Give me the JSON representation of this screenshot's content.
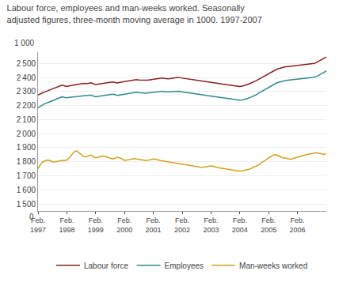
{
  "chart_data": {
    "type": "line",
    "title": "Labour force, employees and man-weeks worked. Seasonally\nadjusted figures, three-month moving average in 1000. 1997-2007",
    "ylabel": "1 000",
    "categories": [
      "Feb.\n1997",
      null,
      null,
      null,
      null,
      null,
      null,
      null,
      null,
      null,
      null,
      null,
      "Feb.\n1998",
      null,
      null,
      null,
      null,
      null,
      null,
      null,
      null,
      null,
      null,
      null,
      "Feb.\n1999",
      null,
      null,
      null,
      null,
      null,
      null,
      null,
      null,
      null,
      null,
      null,
      "Feb.\n2000",
      null,
      null,
      null,
      null,
      null,
      null,
      null,
      null,
      null,
      null,
      null,
      "Feb.\n2001",
      null,
      null,
      null,
      null,
      null,
      null,
      null,
      null,
      null,
      null,
      null,
      "Feb.\n2002",
      null,
      null,
      null,
      null,
      null,
      null,
      null,
      null,
      null,
      null,
      null,
      "Feb.\n2003",
      null,
      null,
      null,
      null,
      null,
      null,
      null,
      null,
      null,
      null,
      null,
      "Feb.\n2004",
      null,
      null,
      null,
      null,
      null,
      null,
      null,
      null,
      null,
      null,
      null,
      "Feb.\n2005",
      null,
      null,
      null,
      null,
      null,
      null,
      null,
      null,
      null,
      null,
      null,
      "Feb.\n2006",
      null,
      null,
      null,
      null,
      null,
      null,
      null,
      null,
      null,
      null,
      null,
      null
    ],
    "series": [
      {
        "name": "Labour force",
        "color": "#8B2020",
        "values": [
          2275,
          2285,
          2292,
          2298,
          2305,
          2310,
          2318,
          2325,
          2330,
          2338,
          2345,
          2340,
          2335,
          2340,
          2342,
          2345,
          2348,
          2352,
          2355,
          2358,
          2355,
          2358,
          2362,
          2355,
          2350,
          2352,
          2355,
          2358,
          2360,
          2362,
          2365,
          2368,
          2365,
          2360,
          2365,
          2368,
          2370,
          2372,
          2375,
          2378,
          2382,
          2385,
          2382,
          2380,
          2378,
          2380,
          2382,
          2385,
          2388,
          2390,
          2392,
          2395,
          2395,
          2392,
          2390,
          2392,
          2395,
          2398,
          2400,
          2398,
          2395,
          2392,
          2390,
          2388,
          2385,
          2382,
          2380,
          2378,
          2375,
          2372,
          2370,
          2368,
          2365,
          2362,
          2360,
          2358,
          2355,
          2352,
          2350,
          2348,
          2345,
          2342,
          2340,
          2338,
          2335,
          2338,
          2342,
          2348,
          2355,
          2362,
          2370,
          2378,
          2388,
          2398,
          2408,
          2418,
          2428,
          2438,
          2448,
          2455,
          2462,
          2468,
          2472,
          2476,
          2478,
          2480,
          2482,
          2483,
          2484,
          2485,
          2486,
          2488,
          2490,
          2492,
          2495,
          2500,
          2508,
          2518,
          2528,
          2538,
          2545
        ]
      },
      {
        "name": "Employees",
        "color": "#2E8B8B",
        "values": [
          2185,
          2195,
          2205,
          2215,
          2220,
          2228,
          2235,
          2242,
          2248,
          2255,
          2262,
          2258,
          2255,
          2258,
          2260,
          2262,
          2265,
          2268,
          2270,
          2272,
          2270,
          2272,
          2275,
          2268,
          2262,
          2265,
          2268,
          2270,
          2272,
          2275,
          2278,
          2280,
          2278,
          2272,
          2275,
          2278,
          2280,
          2282,
          2285,
          2288,
          2292,
          2295,
          2292,
          2290,
          2288,
          2288,
          2290,
          2292,
          2295,
          2298,
          2300,
          2302,
          2302,
          2298,
          2296,
          2298,
          2300,
          2302,
          2304,
          2302,
          2298,
          2295,
          2292,
          2290,
          2288,
          2285,
          2282,
          2280,
          2278,
          2275,
          2272,
          2270,
          2268,
          2265,
          2262,
          2260,
          2258,
          2255,
          2252,
          2250,
          2248,
          2245,
          2242,
          2240,
          2238,
          2240,
          2243,
          2248,
          2255,
          2262,
          2270,
          2278,
          2290,
          2300,
          2312,
          2322,
          2332,
          2342,
          2352,
          2358,
          2365,
          2370,
          2374,
          2378,
          2380,
          2382,
          2384,
          2385,
          2386,
          2387,
          2388,
          2390,
          2392,
          2395,
          2398,
          2402,
          2408,
          2418,
          2428,
          2438,
          2445
        ]
      },
      {
        "name": "Man-weeks worked",
        "color": "#D4A020",
        "values": [
          1750,
          1780,
          1800,
          1808,
          1812,
          1808,
          1800,
          1798,
          1802,
          1808,
          1810,
          1808,
          1812,
          1830,
          1850,
          1870,
          1878,
          1865,
          1848,
          1838,
          1835,
          1842,
          1848,
          1838,
          1828,
          1832,
          1838,
          1840,
          1838,
          1832,
          1825,
          1820,
          1825,
          1832,
          1828,
          1818,
          1810,
          1812,
          1818,
          1820,
          1822,
          1820,
          1818,
          1815,
          1812,
          1808,
          1812,
          1818,
          1820,
          1818,
          1812,
          1808,
          1805,
          1802,
          1800,
          1798,
          1795,
          1792,
          1790,
          1788,
          1785,
          1782,
          1778,
          1775,
          1772,
          1768,
          1765,
          1762,
          1760,
          1762,
          1765,
          1768,
          1770,
          1768,
          1762,
          1758,
          1755,
          1752,
          1748,
          1745,
          1742,
          1740,
          1738,
          1735,
          1732,
          1735,
          1738,
          1742,
          1748,
          1755,
          1762,
          1770,
          1780,
          1792,
          1805,
          1818,
          1828,
          1838,
          1848,
          1850,
          1842,
          1835,
          1828,
          1825,
          1820,
          1818,
          1822,
          1828,
          1832,
          1838,
          1842,
          1848,
          1852,
          1855,
          1858,
          1862,
          1865,
          1860,
          1855,
          1852,
          1858
        ]
      }
    ],
    "ylim": [
      1450,
      2580
    ],
    "yticks": [
      {
        "value": 1500,
        "label": "1 500"
      },
      {
        "value": 1600,
        "label": "1 600"
      },
      {
        "value": 1700,
        "label": "1 700"
      },
      {
        "value": 1800,
        "label": "1 800"
      },
      {
        "value": 1900,
        "label": "1 900"
      },
      {
        "value": 2000,
        "label": "2 000"
      },
      {
        "value": 2100,
        "label": "2 100"
      },
      {
        "value": 2200,
        "label": "2 200"
      },
      {
        "value": 2300,
        "label": "2 300"
      },
      {
        "value": 2400,
        "label": "2 400"
      },
      {
        "value": 2500,
        "label": "2 500"
      }
    ],
    "annotations": [
      {
        "text": "0",
        "y": 1450
      }
    ],
    "grid": true,
    "legend": "bottom"
  }
}
